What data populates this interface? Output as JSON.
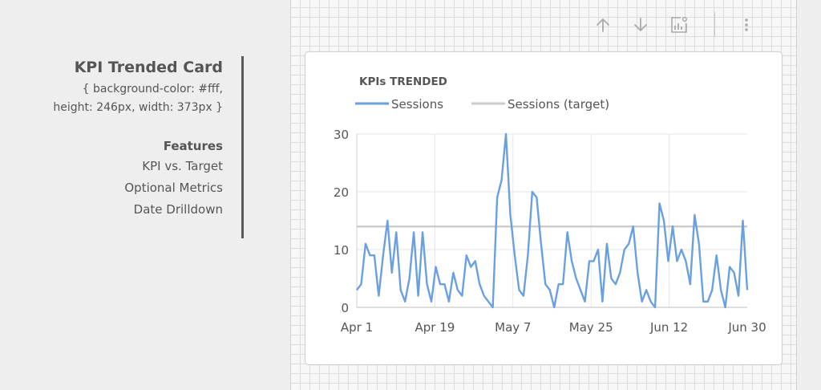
{
  "info": {
    "title": "KPI Trended Card",
    "desc_line1": "{ background-color: #fff,",
    "desc_line2": "height: 246px, width: 373px }",
    "features_heading": "Features",
    "features": [
      "KPI vs. Target",
      "Optional Metrics",
      "Date Drilldown"
    ]
  },
  "toolbar": {
    "icons": [
      "arrow-up-icon",
      "arrow-down-icon",
      "chart-settings-icon",
      "more-vert-icon"
    ]
  },
  "colors": {
    "series": "#6a9fe0",
    "target": "#cccccc",
    "text": "#555555"
  },
  "chart_data": {
    "type": "line",
    "title": "KPIs TRENDED",
    "legend_position": "top-left",
    "x_ticks": [
      "Apr 1",
      "Apr 19",
      "May 7",
      "May 25",
      "Jun 12",
      "Jun 30"
    ],
    "y_ticks": [
      "0",
      "10",
      "20",
      "30"
    ],
    "ylim": [
      0,
      30
    ],
    "grid": true,
    "series": [
      {
        "name": "Sessions",
        "values": [
          3,
          4,
          11,
          9,
          9,
          2,
          9,
          15,
          6,
          13,
          3,
          1,
          5,
          13,
          2,
          13,
          4,
          1,
          7,
          4,
          4,
          1,
          6,
          3,
          2,
          9,
          7,
          8,
          4,
          2,
          1,
          0,
          19,
          22,
          30,
          16,
          9,
          3,
          2,
          9,
          20,
          19,
          11,
          4,
          3,
          0,
          4,
          4,
          13,
          8,
          5,
          3,
          1,
          8,
          8,
          10,
          1,
          11,
          5,
          4,
          6,
          10,
          11,
          14,
          6,
          1,
          3,
          1,
          0,
          18,
          15,
          8,
          14,
          8,
          10,
          8,
          4,
          16,
          11,
          1,
          1,
          3,
          9,
          3,
          0,
          7,
          6,
          2,
          15,
          3
        ],
        "start": "2019-04-01",
        "end": "2019-06-30"
      },
      {
        "name": "Sessions (target)",
        "values": [
          14
        ]
      }
    ]
  }
}
